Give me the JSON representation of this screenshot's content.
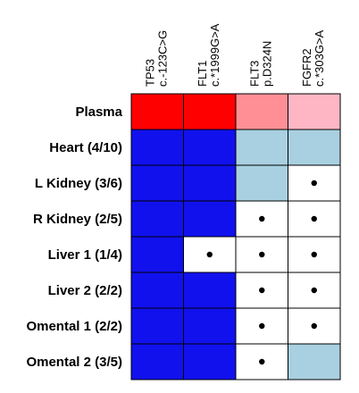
{
  "chart_data": {
    "type": "heatmap",
    "columns": [
      {
        "gene": "TP53",
        "variant": "c.-123C>G"
      },
      {
        "gene": "FLT1",
        "variant": "c.*1999G>A"
      },
      {
        "gene": "FLT3",
        "variant": "p.D324N"
      },
      {
        "gene": "FGFR2",
        "variant": "c.*303G>A"
      }
    ],
    "rows": [
      "Plasma",
      "Heart (4/10)",
      "L Kidney (3/6)",
      "R Kidney (2/5)",
      "Liver 1 (1/4)",
      "Liver 2 (2/2)",
      "Omental 1 (2/2)",
      "Omental 2 (3/5)"
    ],
    "palette": {
      "red": "#ff0000",
      "salmon": "#ff8f95",
      "pink": "#ffb6c4",
      "blue": "#1111ee",
      "lightblue": "#a8d0e0",
      "white": "#ffffff"
    },
    "cells": [
      [
        "red",
        "red",
        "salmon",
        "pink"
      ],
      [
        "blue",
        "blue",
        "lightblue",
        "lightblue"
      ],
      [
        "blue",
        "blue",
        "lightblue",
        "white"
      ],
      [
        "blue",
        "blue",
        "white",
        "white"
      ],
      [
        "blue",
        "white",
        "white",
        "white"
      ],
      [
        "blue",
        "blue",
        "white",
        "white"
      ],
      [
        "blue",
        "blue",
        "white",
        "white"
      ],
      [
        "blue",
        "blue",
        "white",
        "lightblue"
      ]
    ],
    "dots": [
      [
        false,
        false,
        false,
        false
      ],
      [
        false,
        false,
        false,
        false
      ],
      [
        false,
        false,
        false,
        true
      ],
      [
        false,
        false,
        true,
        true
      ],
      [
        false,
        true,
        true,
        true
      ],
      [
        false,
        false,
        true,
        true
      ],
      [
        false,
        false,
        true,
        true
      ],
      [
        false,
        false,
        true,
        false
      ]
    ]
  }
}
